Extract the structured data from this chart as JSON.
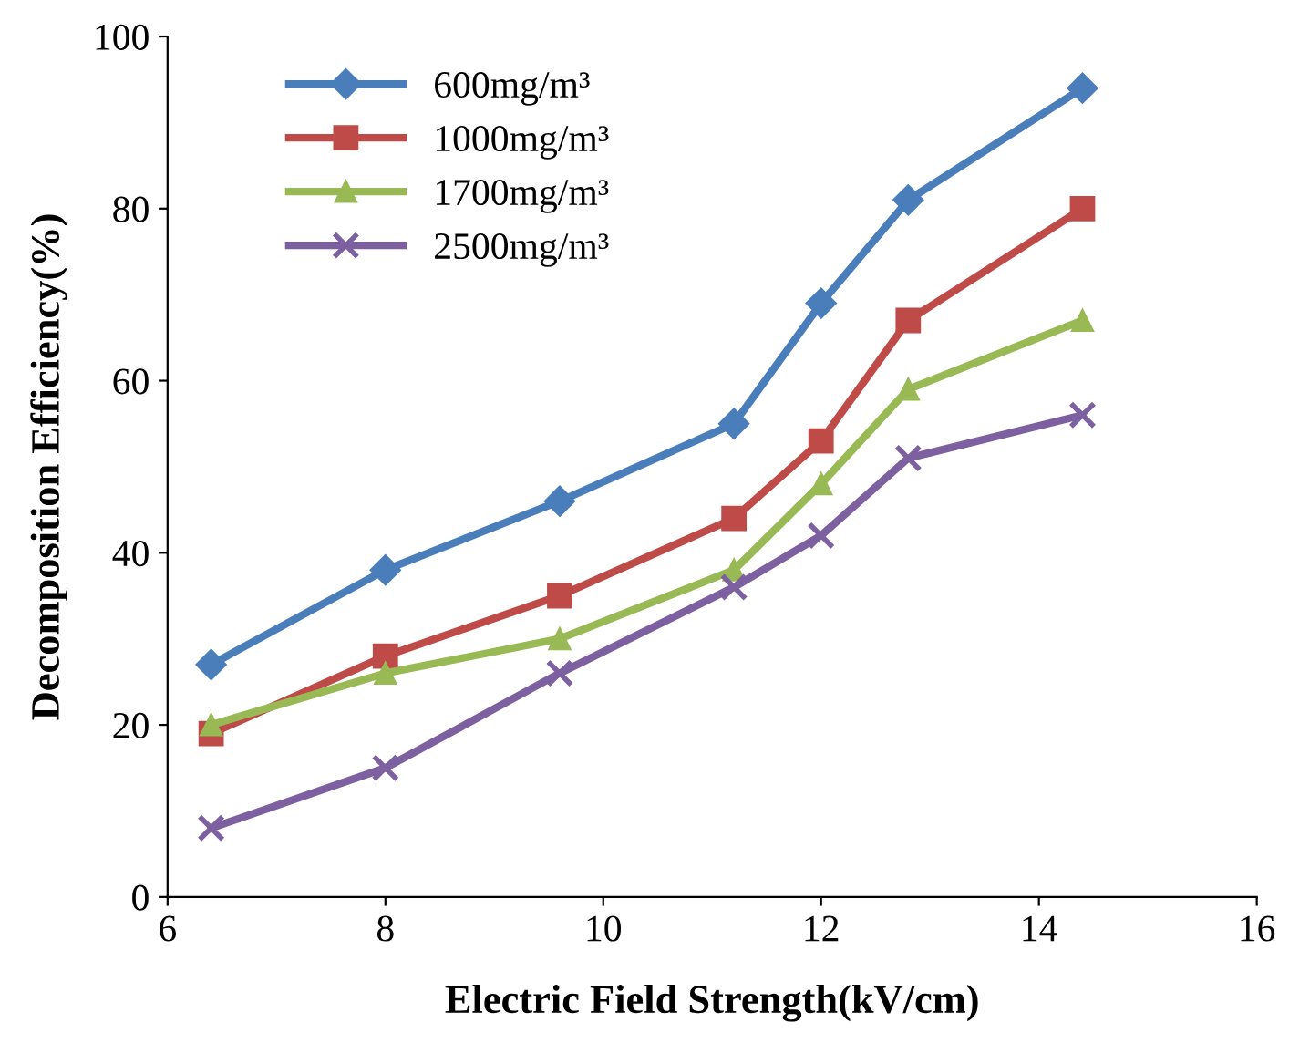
{
  "chart_data": {
    "type": "line",
    "xlabel": "Electric Field Strength(kV/cm)",
    "ylabel": "Decomposition Efficiency(%)",
    "x": [
      6.4,
      8,
      9.6,
      11.2,
      12,
      12.8,
      14.4
    ],
    "series": [
      {
        "name": "600mg/m³",
        "color": "#4a7ebb",
        "marker": "diamond",
        "values": [
          27,
          38,
          46,
          55,
          69,
          81,
          94
        ]
      },
      {
        "name": "1000mg/m³",
        "color": "#be4b48",
        "marker": "square",
        "values": [
          19,
          28,
          35,
          44,
          53,
          67,
          80
        ]
      },
      {
        "name": "1700mg/m³",
        "color": "#98b954",
        "marker": "triangle",
        "values": [
          20,
          26,
          30,
          38,
          48,
          59,
          67
        ]
      },
      {
        "name": "2500mg/m³",
        "color": "#7d60a0",
        "marker": "cross",
        "values": [
          8,
          15,
          26,
          36,
          42,
          51,
          56
        ]
      }
    ],
    "xlim": [
      6,
      16
    ],
    "xticks": [
      6,
      8,
      10,
      12,
      14,
      16
    ],
    "ylim": [
      0,
      100
    ],
    "yticks": [
      0,
      20,
      40,
      60,
      80,
      100
    ],
    "grid": false,
    "legend": "top left",
    "line_style": "solid"
  }
}
